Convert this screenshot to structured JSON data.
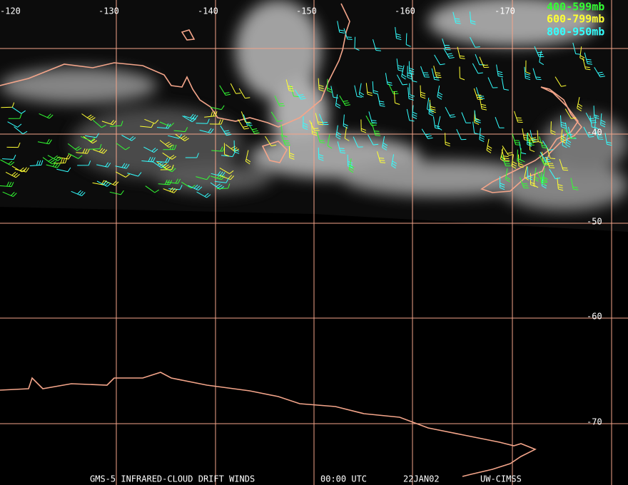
{
  "map": {
    "longitude_labels": [
      "-120",
      "-130",
      "-140",
      "-150",
      "-160",
      "-170"
    ],
    "latitude_labels": [
      "-40",
      "-50",
      "-60",
      "-70"
    ],
    "legend": [
      {
        "label": "400-599mb",
        "color": "#33ff33"
      },
      {
        "label": "600-799mb",
        "color": "#ffff33"
      },
      {
        "label": "800-950mb",
        "color": "#33ffff"
      }
    ],
    "footer": {
      "product": "GMS-5 INFRARED-CLOUD DRIFT WINDS",
      "time": "00:00 UTC",
      "date": "22JAN02",
      "source": "UW-CIMSS"
    }
  }
}
